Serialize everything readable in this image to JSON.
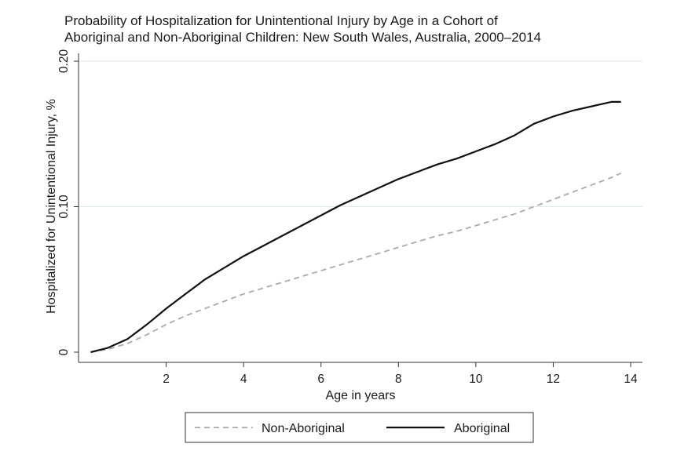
{
  "chart_data": {
    "type": "line",
    "title": [
      "Probability of Hospitalization for Unintentional Injury by Age in a Cohort of",
      "Aboriginal and Non-Aboriginal Children: New South Wales, Australia, 2000–2014"
    ],
    "xlabel": "Age in years",
    "ylabel": "Hospitalized for Unintentional Injury, %",
    "xlim": [
      0,
      14
    ],
    "ylim": [
      0,
      0.2
    ],
    "x_ticks": [
      2,
      4,
      6,
      8,
      10,
      12,
      14
    ],
    "x_tick_labels": [
      "2",
      "4",
      "6",
      "8",
      "10",
      "12",
      "14"
    ],
    "y_ticks": [
      0,
      0.1,
      0.2
    ],
    "y_tick_labels": [
      "0",
      "0.10",
      "0.20"
    ],
    "grid": "horizontal",
    "legend_position": "bottom",
    "series": [
      {
        "name": "Non-Aboriginal",
        "style": "dashed",
        "color": "#aaaaaa",
        "x": [
          0.05,
          0.5,
          1.0,
          1.5,
          2.0,
          2.5,
          3.0,
          3.5,
          4.0,
          4.5,
          5.0,
          5.5,
          6.0,
          6.5,
          7.0,
          7.5,
          8.0,
          8.5,
          9.0,
          9.5,
          10.0,
          10.5,
          11.0,
          11.5,
          12.0,
          12.5,
          13.0,
          13.5,
          13.75
        ],
        "y": [
          0.0,
          0.002,
          0.006,
          0.012,
          0.019,
          0.025,
          0.03,
          0.035,
          0.04,
          0.044,
          0.048,
          0.052,
          0.056,
          0.06,
          0.064,
          0.068,
          0.072,
          0.076,
          0.08,
          0.083,
          0.087,
          0.091,
          0.095,
          0.1,
          0.105,
          0.11,
          0.115,
          0.12,
          0.123
        ]
      },
      {
        "name": "Aboriginal",
        "style": "solid",
        "color": "#111111",
        "x": [
          0.05,
          0.5,
          1.0,
          1.5,
          2.0,
          2.5,
          3.0,
          3.5,
          4.0,
          4.5,
          5.0,
          5.5,
          6.0,
          6.5,
          7.0,
          7.5,
          8.0,
          8.5,
          9.0,
          9.5,
          10.0,
          10.5,
          11.0,
          11.5,
          12.0,
          12.5,
          13.0,
          13.5,
          13.75
        ],
        "y": [
          0.0,
          0.003,
          0.009,
          0.019,
          0.03,
          0.04,
          0.05,
          0.058,
          0.066,
          0.073,
          0.08,
          0.087,
          0.094,
          0.101,
          0.107,
          0.113,
          0.119,
          0.124,
          0.129,
          0.133,
          0.138,
          0.143,
          0.149,
          0.157,
          0.162,
          0.166,
          0.169,
          0.172,
          0.172
        ]
      }
    ]
  }
}
